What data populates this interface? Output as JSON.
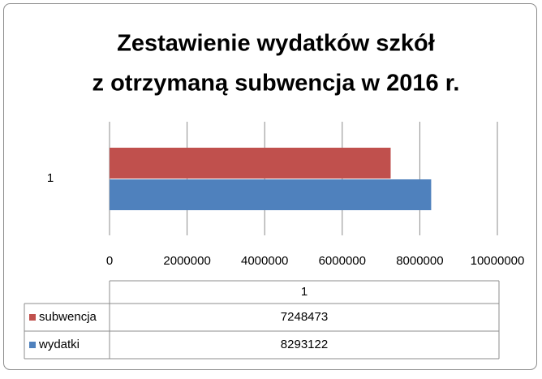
{
  "chart_data": {
    "type": "bar",
    "orientation": "horizontal",
    "title": [
      "Zestawienie wydatków szkół",
      "z otrzymaną subwencja w 2016 r."
    ],
    "categories": [
      "1"
    ],
    "series": [
      {
        "name": "subwencja",
        "color": "#c0504d",
        "values": [
          7248473
        ]
      },
      {
        "name": "wydatki",
        "color": "#4f81bd",
        "values": [
          8293122
        ]
      }
    ],
    "xlim": [
      0,
      10000000
    ],
    "xticks": [
      0,
      2000000,
      4000000,
      6000000,
      8000000,
      10000000
    ],
    "grid": true,
    "data_table": true
  }
}
